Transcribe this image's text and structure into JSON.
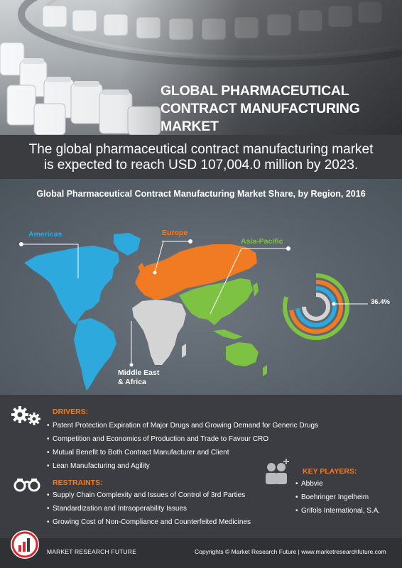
{
  "title": {
    "line1": "GLOBAL PHARMACEUTICAL",
    "line2": "CONTRACT MANUFACTURING MARKET"
  },
  "summary": {
    "line1": "The global pharmaceutical contract manufacturing market",
    "line2": "is expected to reach USD 107,004.0 million by 2023."
  },
  "map": {
    "title": "Global Pharmaceutical Contract Manufacturing Market Share, by Region, 2016",
    "regions": {
      "americas": "Americas",
      "europe": "Europe",
      "apac": "Asia-Pacific",
      "mea_line1": "Middle East",
      "mea_line2": "& Africa"
    },
    "share_label": "36.4%",
    "colors": {
      "americas": "#2ea9de",
      "europe": "#f07b22",
      "apac": "#7dc242",
      "mea": "#d4d4d4"
    }
  },
  "drivers": {
    "heading": "DRIVERS:",
    "items": [
      "Patent Protection Expiration of Major Drugs and Growing Demand for Generic Drugs",
      "Competition and Economics of Production and Trade to Favour CRO",
      "Mutual Benefit to Both Contract Manufacturer and Client",
      "Lean Manufacturing and Agility"
    ]
  },
  "restraints": {
    "heading": "RESTRAINTS:",
    "items": [
      "Supply Chain Complexity and Issues of Control of 3rd Parties",
      "Standardization and Intraoperability Issues",
      "Growing Cost of Non-Compliance and Counterfeited Medicines"
    ]
  },
  "key_players": {
    "heading": "KEY PLAYERS:",
    "items": [
      "Abbvie",
      "Boehringer Ingelheim",
      "Grifols International, S.A."
    ]
  },
  "footer": {
    "brand": "MARKET RESEARCH FUTURE",
    "copyright": "Copyrights © Market Research Future | www.marketresearchfuture.com"
  },
  "icons": {
    "drivers": "gears-icon",
    "restraints": "handcuffs-icon",
    "key_players": "group-add-icon",
    "logo": "mrfr-logo-icon"
  },
  "accent": "#f07b22"
}
